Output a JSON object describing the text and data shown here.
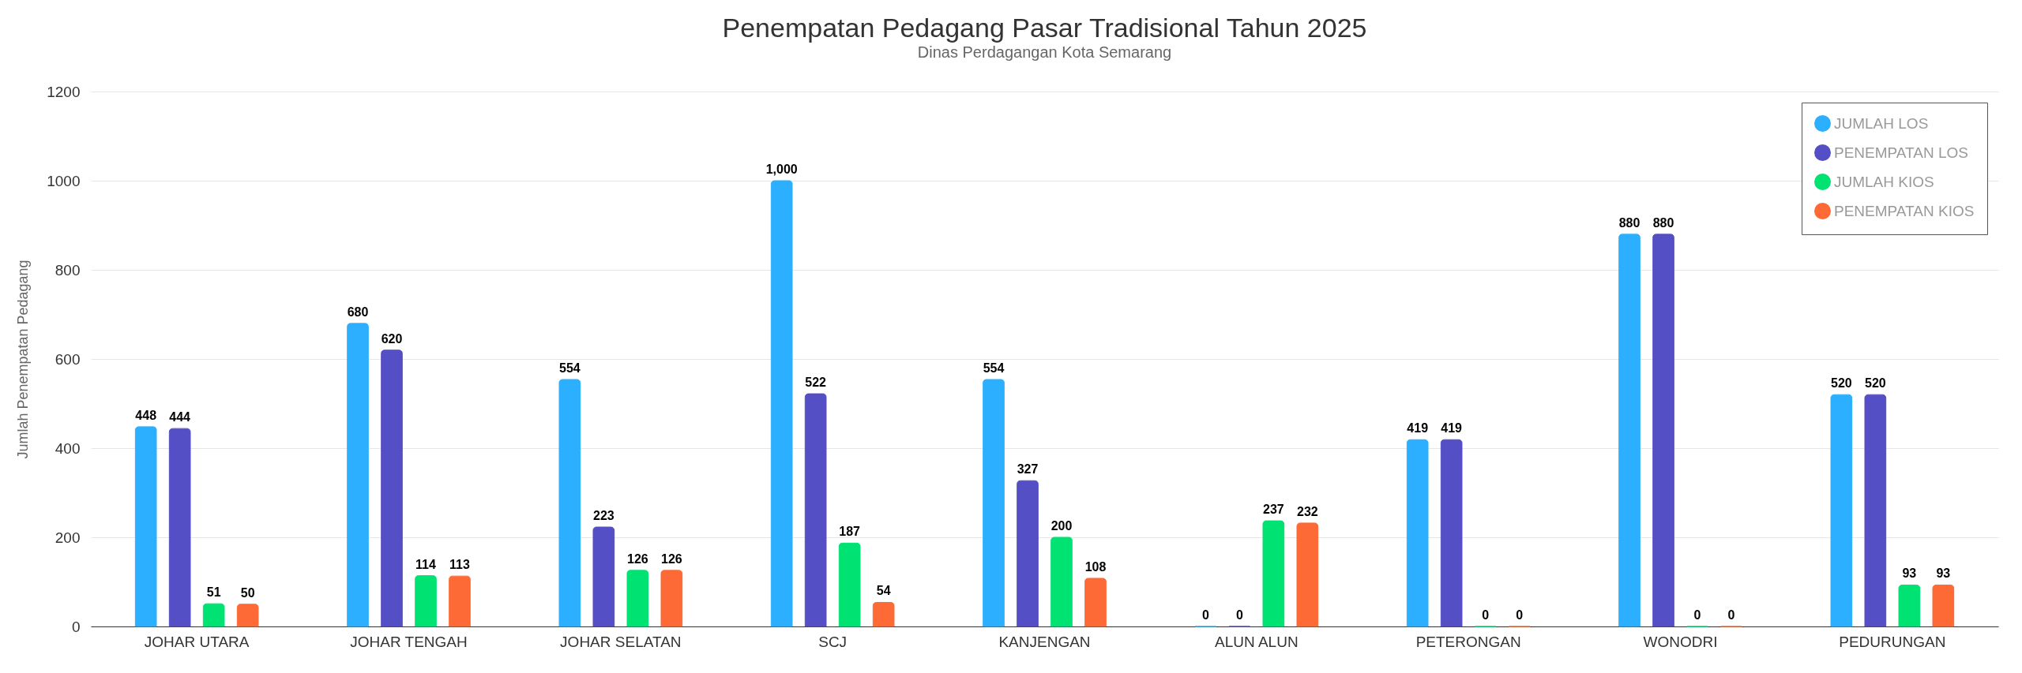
{
  "chart_data": {
    "type": "bar",
    "title": "Penempatan Pedagang Pasar Tradisional Tahun 2025",
    "subtitle": "Dinas Perdagangan Kota Semarang",
    "ylabel": "Jumlah Penempatan Pedagang",
    "categories": [
      "JOHAR UTARA",
      "JOHAR TENGAH",
      "JOHAR SELATAN",
      "SCJ",
      "KANJENGAN",
      "ALUN ALUN",
      "PETERONGAN",
      "WONODRI",
      "PEDURUNGAN"
    ],
    "series": [
      {
        "name": "JUMLAH LOS",
        "color": "#2caffe",
        "values": [
          448,
          680,
          554,
          1000,
          554,
          0,
          419,
          880,
          520
        ],
        "value_labels": [
          "448",
          "680",
          "554",
          "1,000",
          "554",
          "0",
          "419",
          "880",
          "520"
        ]
      },
      {
        "name": "PENEMPATAN LOS",
        "color": "#544fc5",
        "values": [
          444,
          620,
          223,
          522,
          327,
          0,
          419,
          880,
          520
        ],
        "value_labels": [
          "444",
          "620",
          "223",
          "522",
          "327",
          "0",
          "419",
          "880",
          "520"
        ]
      },
      {
        "name": "JUMLAH KIOS",
        "color": "#00e272",
        "values": [
          51,
          114,
          126,
          187,
          200,
          237,
          0,
          0,
          93
        ],
        "value_labels": [
          "51",
          "114",
          "126",
          "187",
          "200",
          "237",
          "0",
          "0",
          "93"
        ]
      },
      {
        "name": "PENEMPATAN KIOS",
        "color": "#fe6a35",
        "values": [
          50,
          113,
          126,
          54,
          108,
          232,
          0,
          0,
          93
        ],
        "value_labels": [
          "50",
          "113",
          "126",
          "54",
          "108",
          "232",
          "0",
          "0",
          "93"
        ]
      }
    ],
    "ylim": [
      0,
      1200
    ],
    "yticks": [
      0,
      200,
      400,
      600,
      800,
      1000,
      1200
    ],
    "grid": "y",
    "legend": "top right"
  }
}
